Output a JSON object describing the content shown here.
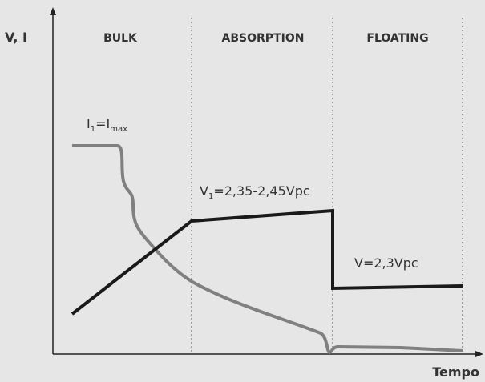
{
  "axes": {
    "y_label": "V, I",
    "x_label": "Tempo"
  },
  "stages": [
    "BULK",
    "ABSORPTION",
    "FLOATING"
  ],
  "annotations": {
    "current": [
      "I",
      "1",
      "=I",
      "max"
    ],
    "absorption_voltage": [
      "V",
      "1",
      "=2,35-2,45Vpc"
    ],
    "floating_voltage": "V=2,3Vpc"
  }
}
